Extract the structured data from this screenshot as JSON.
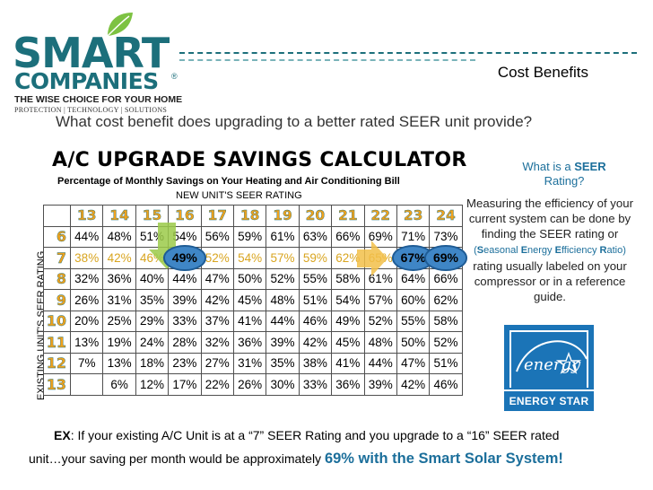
{
  "logo": {
    "brand_top": "SMART",
    "brand_bottom": "COMPANIES",
    "registered": "®",
    "tagline": "THE WISE CHOICE FOR YOUR HOME",
    "subline": "PROTECTION | TECHNOLOGY | SOLUTIONS"
  },
  "header": {
    "title": "Cost Benefits"
  },
  "question": "What cost benefit does upgrading to a  better rated SEER unit provide?",
  "calculator": {
    "title": "A/C UPGRADE SAVINGS CALCULATOR",
    "subtitle": "Percentage of Monthly Savings on Your Heating and Air Conditioning Bill",
    "new_label": "NEW UNIT'S SEER RATING",
    "existing_label": "EXISTING  UNIT'S SEER RATING",
    "columns": [
      "13",
      "14",
      "15",
      "16",
      "17",
      "18",
      "19",
      "20",
      "21",
      "22",
      "23",
      "24"
    ],
    "rows": [
      {
        "seer": "6",
        "values": [
          "44%",
          "48%",
          "51%",
          "54%",
          "56%",
          "59%",
          "61%",
          "63%",
          "66%",
          "69%",
          "71%",
          "73%"
        ]
      },
      {
        "seer": "7",
        "values": [
          "38%",
          "42%",
          "46%",
          "49%",
          "52%",
          "54%",
          "57%",
          "59%",
          "62%",
          "65%",
          "67%",
          "69%"
        ]
      },
      {
        "seer": "8",
        "values": [
          "32%",
          "36%",
          "40%",
          "44%",
          "47%",
          "50%",
          "52%",
          "55%",
          "58%",
          "61%",
          "64%",
          "66%"
        ]
      },
      {
        "seer": "9",
        "values": [
          "26%",
          "31%",
          "35%",
          "39%",
          "42%",
          "45%",
          "48%",
          "51%",
          "54%",
          "57%",
          "60%",
          "62%"
        ]
      },
      {
        "seer": "10",
        "values": [
          "20%",
          "25%",
          "29%",
          "33%",
          "37%",
          "41%",
          "44%",
          "46%",
          "49%",
          "52%",
          "55%",
          "58%"
        ]
      },
      {
        "seer": "11",
        "values": [
          "13%",
          "19%",
          "24%",
          "28%",
          "32%",
          "36%",
          "39%",
          "42%",
          "45%",
          "48%",
          "50%",
          "52%"
        ]
      },
      {
        "seer": "12",
        "values": [
          "7%",
          "13%",
          "18%",
          "23%",
          "27%",
          "31%",
          "35%",
          "38%",
          "41%",
          "44%",
          "47%",
          "51%"
        ]
      },
      {
        "seer": "13",
        "values": [
          "",
          "6%",
          "12%",
          "17%",
          "22%",
          "26%",
          "30%",
          "33%",
          "36%",
          "39%",
          "42%",
          "46%"
        ]
      }
    ]
  },
  "sidebar": {
    "question_prefix": "What is a ",
    "question_seer": "SEER",
    "question_suffix": "Rating?",
    "text_1": "Measuring the efficiency of your current system can be done by finding the SEER rating or",
    "seer_open": "(",
    "seer_s": "S",
    "seer_easonal": "easonal ",
    "seer_e": "E",
    "seer_nergy": "nergy ",
    "seer_e2": "E",
    "seer_fficiency": "fficiency ",
    "seer_r": "R",
    "seer_atio": "atio)",
    "text_2": "rating usually labeled on your compressor or in a reference guide.",
    "energy_star_label": "ENERGY STAR",
    "energy_script": "energy"
  },
  "example": {
    "ex_label": "EX",
    "line1": ": If your existing A/C Unit is at a “7” SEER Rating and you upgrade to a “16” SEER rated",
    "line2": "unit…your saving per month would be approximately ",
    "highlight": "69% with the Smart Solar System!"
  },
  "colors": {
    "brand_teal": "#1c6f7b",
    "header_orange": "#f0a21c",
    "accent_blue": "#1c6f9b",
    "oval_blue": "#3f86c6",
    "energy_star_blue": "#1b74b7"
  }
}
